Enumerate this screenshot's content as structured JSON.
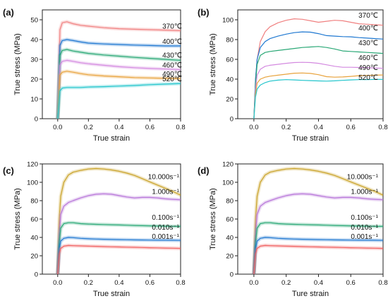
{
  "chart_data": [
    {
      "type": "line",
      "panel_label": "(a)",
      "xlabel": "True strain",
      "ylabel": "True stress (MPa)",
      "xlim": [
        -0.1,
        0.8
      ],
      "ylim": [
        0,
        55
      ],
      "xticks": [
        0.0,
        0.2,
        0.4,
        0.6,
        0.8
      ],
      "xticklabels": [
        "0.0",
        "0.2",
        "0.4",
        "0.6",
        "0.8"
      ],
      "yticks": [
        0,
        10,
        20,
        30,
        40,
        50
      ],
      "yticklabels": [
        "0",
        "10",
        "20",
        "30",
        "40",
        "50"
      ],
      "shaded_band": true,
      "series": [
        {
          "name": "370℃",
          "color": "#f08080",
          "x": [
            0,
            0.015,
            0.03,
            0.06,
            0.1,
            0.15,
            0.2,
            0.3,
            0.4,
            0.5,
            0.6,
            0.7,
            0.8
          ],
          "y": [
            0,
            45,
            48.5,
            49,
            48,
            47.2,
            46.8,
            46,
            45.5,
            45.2,
            45,
            44.8,
            44.5
          ]
        },
        {
          "name": "400℃",
          "color": "#1f78d1",
          "x": [
            0,
            0.015,
            0.03,
            0.06,
            0.1,
            0.15,
            0.2,
            0.3,
            0.4,
            0.5,
            0.6,
            0.7,
            0.8
          ],
          "y": [
            0,
            37,
            39.5,
            40,
            39.5,
            38.8,
            38.2,
            37.8,
            37.5,
            37.2,
            37,
            36.8,
            36.8
          ]
        },
        {
          "name": "430℃",
          "color": "#2aa876",
          "x": [
            0,
            0.015,
            0.03,
            0.06,
            0.1,
            0.15,
            0.2,
            0.3,
            0.4,
            0.5,
            0.6,
            0.7,
            0.8
          ],
          "y": [
            0,
            32,
            34.5,
            35,
            34.2,
            33.6,
            33,
            32.2,
            31.6,
            31,
            30.5,
            30,
            29.5
          ]
        },
        {
          "name": "460℃",
          "color": "#d48ae0",
          "x": [
            0,
            0.015,
            0.03,
            0.06,
            0.1,
            0.15,
            0.2,
            0.3,
            0.4,
            0.5,
            0.6,
            0.7,
            0.8
          ],
          "y": [
            0,
            27,
            29,
            29.5,
            29,
            28.3,
            27.8,
            27,
            26.3,
            25.8,
            25.4,
            25.1,
            24.8
          ]
        },
        {
          "name": "490℃",
          "color": "#e8a33d",
          "x": [
            0,
            0.015,
            0.03,
            0.06,
            0.1,
            0.15,
            0.2,
            0.3,
            0.4,
            0.5,
            0.6,
            0.7,
            0.8
          ],
          "y": [
            0,
            22,
            23.5,
            24,
            23.5,
            22.8,
            22.2,
            21.6,
            21.2,
            20.8,
            20.6,
            20.4,
            20.3
          ]
        },
        {
          "name": "520℃",
          "color": "#22c5cc",
          "x": [
            0,
            0.015,
            0.03,
            0.06,
            0.1,
            0.15,
            0.2,
            0.3,
            0.4,
            0.5,
            0.6,
            0.7,
            0.8
          ],
          "y": [
            0,
            14,
            15.5,
            15.8,
            15.8,
            15.8,
            16,
            16.2,
            16.5,
            16.8,
            17.2,
            17.5,
            17.8
          ]
        }
      ]
    },
    {
      "type": "line",
      "panel_label": "(b)",
      "xlabel": "True strain",
      "ylabel": "True stress (MPa)",
      "xlim": [
        -0.1,
        0.8
      ],
      "ylim": [
        0,
        110
      ],
      "xticks": [
        0.0,
        0.2,
        0.4,
        0.6,
        0.8
      ],
      "xticklabels": [
        "0.0",
        "0.2",
        "0.4",
        "0.6",
        "0.8"
      ],
      "yticks": [
        0,
        20,
        40,
        60,
        80,
        100
      ],
      "yticklabels": [
        "0",
        "20",
        "40",
        "60",
        "80",
        "100"
      ],
      "series": [
        {
          "name": "370℃",
          "color": "#f08080",
          "x": [
            0,
            0.01,
            0.02,
            0.04,
            0.07,
            0.1,
            0.15,
            0.2,
            0.25,
            0.3,
            0.35,
            0.4,
            0.45,
            0.5,
            0.55,
            0.6,
            0.65,
            0.7,
            0.75,
            0.8
          ],
          "y": [
            0,
            40,
            60,
            78,
            88,
            93,
            97,
            99.5,
            101,
            100.5,
            99,
            97.5,
            98.5,
            99.5,
            99,
            97.5,
            96,
            95.5,
            95,
            94.5
          ]
        },
        {
          "name": "400℃",
          "color": "#1f78d1",
          "x": [
            0,
            0.01,
            0.02,
            0.04,
            0.07,
            0.1,
            0.15,
            0.2,
            0.25,
            0.3,
            0.35,
            0.4,
            0.45,
            0.5,
            0.55,
            0.6,
            0.65,
            0.7,
            0.75,
            0.8
          ],
          "y": [
            0,
            40,
            60,
            72,
            78,
            81,
            83.5,
            85.5,
            87,
            87.8,
            87.5,
            86,
            84,
            83.5,
            83,
            82.8,
            82,
            81.5,
            81,
            80.5
          ]
        },
        {
          "name": "430℃",
          "color": "#2aa876",
          "x": [
            0,
            0.01,
            0.02,
            0.04,
            0.07,
            0.1,
            0.15,
            0.2,
            0.25,
            0.3,
            0.35,
            0.4,
            0.45,
            0.5,
            0.55,
            0.6,
            0.65,
            0.7,
            0.75,
            0.8
          ],
          "y": [
            0,
            35,
            55,
            64,
            67,
            68,
            69,
            70,
            71,
            72,
            72.5,
            73,
            72,
            70.5,
            68.5,
            68,
            67.5,
            67,
            66.5,
            66
          ]
        },
        {
          "name": "460℃",
          "color": "#d48ae0",
          "x": [
            0,
            0.01,
            0.02,
            0.04,
            0.07,
            0.1,
            0.15,
            0.2,
            0.25,
            0.3,
            0.35,
            0.4,
            0.45,
            0.5,
            0.55,
            0.6,
            0.65,
            0.7,
            0.75,
            0.8
          ],
          "y": [
            0,
            30,
            44,
            50,
            53,
            54,
            55,
            56,
            56.8,
            57,
            56.8,
            56,
            54.5,
            53,
            52,
            52,
            51.8,
            51.5,
            51.2,
            51
          ]
        },
        {
          "name": "490℃",
          "color": "#e8a33d",
          "x": [
            0,
            0.01,
            0.02,
            0.04,
            0.07,
            0.1,
            0.15,
            0.2,
            0.25,
            0.3,
            0.35,
            0.4,
            0.45,
            0.5,
            0.55,
            0.6,
            0.65,
            0.7,
            0.75,
            0.8
          ],
          "y": [
            0,
            25,
            36,
            40,
            42,
            43,
            44,
            45,
            46,
            46.2,
            45.8,
            44.5,
            42.5,
            42,
            42.2,
            42.8,
            43.5,
            43.8,
            44,
            44.2
          ]
        },
        {
          "name": "520℃",
          "color": "#22c5cc",
          "x": [
            0,
            0.01,
            0.02,
            0.04,
            0.07,
            0.1,
            0.15,
            0.2,
            0.25,
            0.3,
            0.35,
            0.4,
            0.45,
            0.5,
            0.55,
            0.6,
            0.65,
            0.7,
            0.75,
            0.8
          ],
          "y": [
            0,
            22,
            30,
            34,
            36.5,
            38,
            39,
            39.5,
            39.2,
            38.8,
            38.5,
            38.2,
            38,
            38.3,
            38.8,
            39.2,
            39.5,
            39.6,
            39.7,
            39.8
          ]
        }
      ]
    },
    {
      "type": "line",
      "panel_label": "(c)",
      "xlabel": "True strain",
      "ylabel": "True stress (MPa)",
      "xlim": [
        -0.1,
        0.8
      ],
      "ylim": [
        0,
        120
      ],
      "xticks": [
        0.0,
        0.2,
        0.4,
        0.6,
        0.8
      ],
      "xticklabels": [
        "0.0",
        "0.2",
        "0.4",
        "0.6",
        "0.8"
      ],
      "yticks": [
        0,
        20,
        40,
        60,
        80,
        100,
        120
      ],
      "yticklabels": [
        "0",
        "20",
        "40",
        "60",
        "80",
        "100",
        "120"
      ],
      "shaded_band": true,
      "series": [
        {
          "name": "10.000s⁻¹",
          "color": "#c9a227",
          "x": [
            0,
            0.01,
            0.02,
            0.04,
            0.07,
            0.1,
            0.15,
            0.2,
            0.25,
            0.3,
            0.35,
            0.4,
            0.45,
            0.5,
            0.55,
            0.6,
            0.65,
            0.7,
            0.75,
            0.8
          ],
          "y": [
            0,
            60,
            85,
            100,
            108,
            111,
            113,
            114.5,
            115,
            114.5,
            113.5,
            112,
            110,
            107.5,
            104,
            100.5,
            97,
            93.5,
            90,
            86
          ]
        },
        {
          "name": "1.000s⁻¹",
          "color": "#b775d9",
          "x": [
            0,
            0.01,
            0.02,
            0.04,
            0.07,
            0.1,
            0.15,
            0.2,
            0.25,
            0.3,
            0.35,
            0.4,
            0.45,
            0.5,
            0.55,
            0.6,
            0.65,
            0.7,
            0.75,
            0.8
          ],
          "y": [
            0,
            45,
            65,
            74,
            78,
            80,
            83,
            85.5,
            87,
            87.5,
            87,
            85.5,
            84,
            83,
            83.5,
            83.5,
            83,
            82,
            81.5,
            81
          ]
        },
        {
          "name": "0.100s⁻¹",
          "color": "#2aa876",
          "x": [
            0,
            0.01,
            0.02,
            0.04,
            0.07,
            0.1,
            0.15,
            0.2,
            0.25,
            0.3,
            0.35,
            0.4,
            0.45,
            0.5,
            0.55,
            0.6,
            0.65,
            0.7,
            0.75,
            0.8
          ],
          "y": [
            0,
            35,
            50,
            55,
            56,
            56,
            55,
            54.5,
            54.2,
            54,
            53.8,
            53.5,
            53.3,
            53,
            52.8,
            52.6,
            52.4,
            52.2,
            52,
            52
          ]
        },
        {
          "name": "0.010s⁻¹",
          "color": "#1f78d1",
          "x": [
            0,
            0.01,
            0.02,
            0.04,
            0.07,
            0.1,
            0.15,
            0.2,
            0.25,
            0.3,
            0.35,
            0.4,
            0.45,
            0.5,
            0.55,
            0.6,
            0.65,
            0.7,
            0.75,
            0.8
          ],
          "y": [
            0,
            28,
            36,
            39,
            40,
            39.8,
            39,
            38.5,
            38.2,
            38,
            37.8,
            37.6,
            37.5,
            37.3,
            37.2,
            37.1,
            37,
            37,
            36.9,
            36.8
          ]
        },
        {
          "name": "0.001s⁻¹",
          "color": "#f06060",
          "x": [
            0,
            0.01,
            0.02,
            0.04,
            0.07,
            0.1,
            0.15,
            0.2,
            0.25,
            0.3,
            0.35,
            0.4,
            0.45,
            0.5,
            0.55,
            0.6,
            0.65,
            0.7,
            0.75,
            0.8
          ],
          "y": [
            0,
            22,
            28,
            30.5,
            31.2,
            31,
            30.8,
            30.5,
            30.3,
            30,
            29.8,
            29.6,
            29.4,
            29.2,
            29,
            28.8,
            28.6,
            28.4,
            28.2,
            28
          ]
        }
      ]
    },
    {
      "type": "line",
      "panel_label": "(d)",
      "xlabel": "Ture strain",
      "ylabel": "True stress (MPa)",
      "xlim": [
        -0.1,
        0.8
      ],
      "ylim": [
        0,
        120
      ],
      "xticks": [
        0.0,
        0.2,
        0.4,
        0.6,
        0.8
      ],
      "xticklabels": [
        "0.0",
        "0.2",
        "0.4",
        "0.6",
        "0.8"
      ],
      "yticks": [
        0,
        20,
        40,
        60,
        80,
        100,
        120
      ],
      "yticklabels": [
        "0",
        "20",
        "40",
        "60",
        "80",
        "100",
        "120"
      ],
      "shaded_band": true,
      "series": [
        {
          "name": "10.000s⁻¹",
          "color": "#c9a227",
          "x": [
            0,
            0.01,
            0.02,
            0.04,
            0.07,
            0.1,
            0.15,
            0.2,
            0.25,
            0.3,
            0.35,
            0.4,
            0.45,
            0.5,
            0.55,
            0.6,
            0.65,
            0.7,
            0.75,
            0.8
          ],
          "y": [
            0,
            60,
            85,
            100,
            108,
            111,
            113,
            114.5,
            115,
            114.5,
            113.5,
            112,
            110,
            107.5,
            104,
            100.5,
            97,
            93.5,
            90,
            86
          ]
        },
        {
          "name": "1.000s⁻¹",
          "color": "#b775d9",
          "x": [
            0,
            0.01,
            0.02,
            0.04,
            0.07,
            0.1,
            0.15,
            0.2,
            0.25,
            0.3,
            0.35,
            0.4,
            0.45,
            0.5,
            0.55,
            0.6,
            0.65,
            0.7,
            0.75,
            0.8
          ],
          "y": [
            0,
            45,
            65,
            74,
            78,
            80,
            83,
            85.5,
            87,
            87.5,
            87,
            85.5,
            84,
            83,
            83.5,
            83.5,
            83,
            82,
            81.5,
            81
          ]
        },
        {
          "name": "0.100s⁻¹",
          "color": "#2aa876",
          "x": [
            0,
            0.01,
            0.02,
            0.04,
            0.07,
            0.1,
            0.15,
            0.2,
            0.25,
            0.3,
            0.35,
            0.4,
            0.45,
            0.5,
            0.55,
            0.6,
            0.65,
            0.7,
            0.75,
            0.8
          ],
          "y": [
            0,
            35,
            50,
            55,
            56,
            56,
            55,
            54.5,
            54.2,
            54,
            53.8,
            53.5,
            53.3,
            53,
            52.8,
            52.6,
            52.4,
            52.2,
            52,
            52
          ]
        },
        {
          "name": "0.010s⁻¹",
          "color": "#1f78d1",
          "x": [
            0,
            0.01,
            0.02,
            0.04,
            0.07,
            0.1,
            0.15,
            0.2,
            0.25,
            0.3,
            0.35,
            0.4,
            0.45,
            0.5,
            0.55,
            0.6,
            0.65,
            0.7,
            0.75,
            0.8
          ],
          "y": [
            0,
            28,
            36,
            39,
            40,
            39.8,
            39,
            38.5,
            38.2,
            38,
            37.8,
            37.6,
            37.5,
            37.3,
            37.2,
            37.1,
            37,
            37,
            36.9,
            36.8
          ]
        },
        {
          "name": "0.001s⁻¹",
          "color": "#f06060",
          "x": [
            0,
            0.01,
            0.02,
            0.04,
            0.07,
            0.1,
            0.15,
            0.2,
            0.25,
            0.3,
            0.35,
            0.4,
            0.45,
            0.5,
            0.55,
            0.6,
            0.65,
            0.7,
            0.75,
            0.8
          ],
          "y": [
            0,
            22,
            28,
            30.5,
            31.2,
            31,
            30.8,
            30.5,
            30.3,
            30,
            29.8,
            29.6,
            29.4,
            29.2,
            29,
            28.8,
            28.6,
            28.4,
            28.2,
            28
          ]
        }
      ]
    }
  ]
}
